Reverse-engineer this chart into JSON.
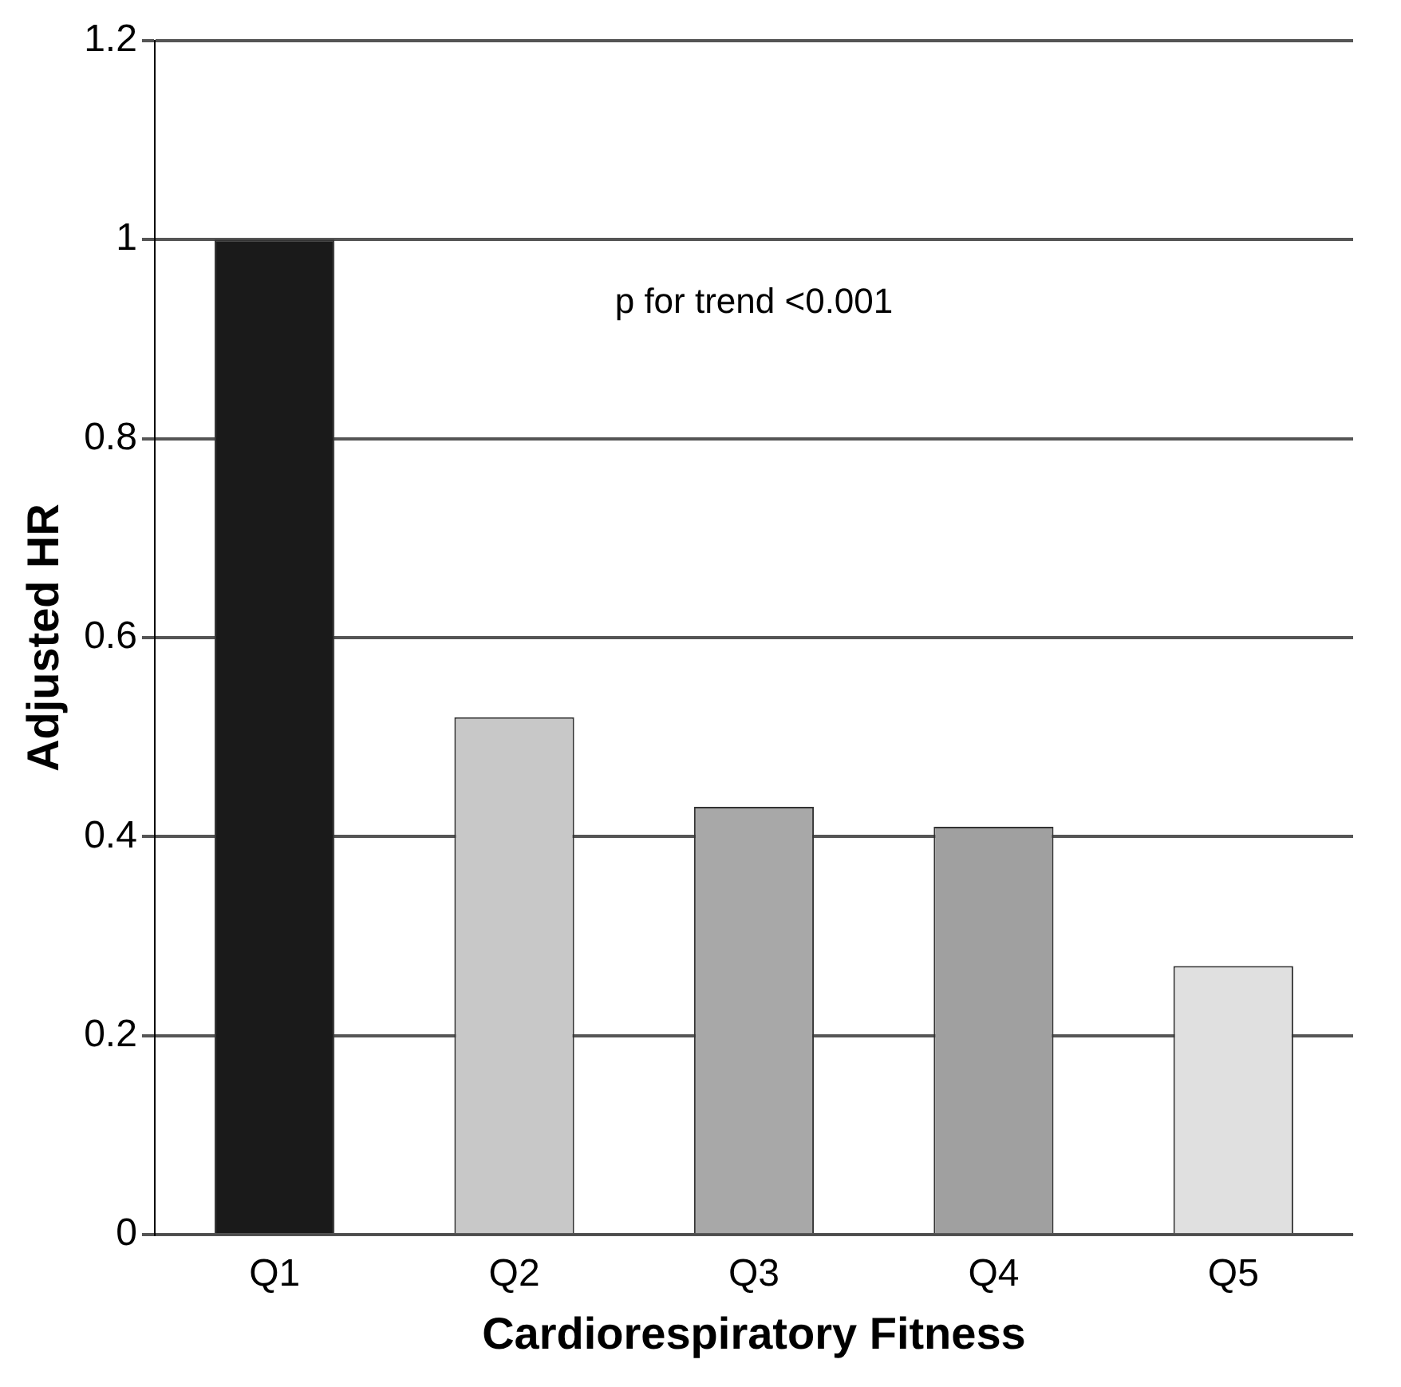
{
  "chart_data": {
    "type": "bar",
    "xlabel": "Cardiorespiratory Fitness",
    "ylabel": "Adjusted HR",
    "categories": [
      "Q1",
      "Q2",
      "Q3",
      "Q4",
      "Q5"
    ],
    "values": [
      1.0,
      0.52,
      0.43,
      0.41,
      0.27
    ],
    "colors": [
      "#1a1a1a",
      "#c8c8c8",
      "#a8a8a8",
      "#a0a0a0",
      "#e0e0e0"
    ],
    "ylim": [
      0,
      1.2
    ],
    "yticks": [
      0,
      0.2,
      0.4,
      0.6,
      0.8,
      1,
      1.2
    ],
    "grid": "y",
    "legend": false,
    "annotations": [
      "p for trend <0.001"
    ]
  }
}
